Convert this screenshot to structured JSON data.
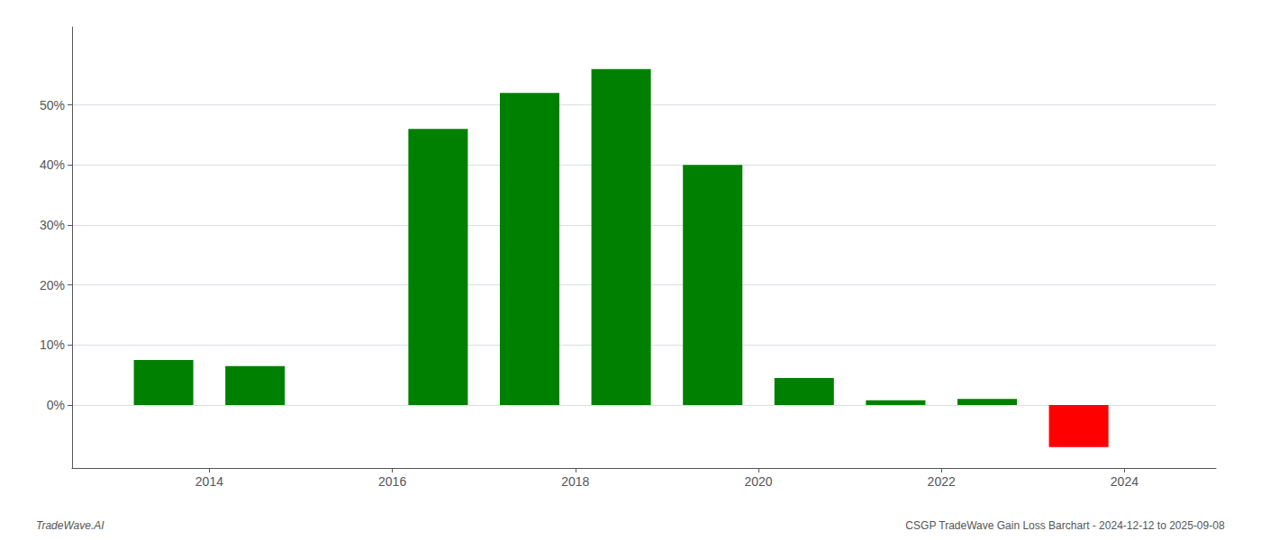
{
  "chart_data": {
    "type": "bar",
    "x": [
      2013.5,
      2014.5,
      2016.5,
      2017.5,
      2018.5,
      2019.5,
      2020.5,
      2021.5,
      2022.5,
      2023.5
    ],
    "values": [
      0.075,
      0.065,
      0.46,
      0.52,
      0.56,
      0.4,
      0.045,
      0.008,
      0.01,
      -0.07
    ],
    "colors": [
      "#008000",
      "#008000",
      "#008000",
      "#008000",
      "#008000",
      "#008000",
      "#008000",
      "#008000",
      "#008000",
      "#ff0000"
    ],
    "xlim": [
      2012.5,
      2025.0
    ],
    "ylim": [
      -0.105,
      0.63
    ],
    "xticks": [
      2014,
      2016,
      2018,
      2020,
      2022,
      2024
    ],
    "yticks": [
      {
        "value": 0.0,
        "label": "0%"
      },
      {
        "value": 0.1,
        "label": "10%"
      },
      {
        "value": 0.2,
        "label": "20%"
      },
      {
        "value": 0.3,
        "label": "30%"
      },
      {
        "value": 0.4,
        "label": "40%"
      },
      {
        "value": 0.5,
        "label": "50%"
      }
    ],
    "grid": true,
    "annotations": [
      "TradeWave.AI",
      "CSGP TradeWave Gain Loss Barchart - 2024-12-12 to 2025-09-08"
    ]
  }
}
